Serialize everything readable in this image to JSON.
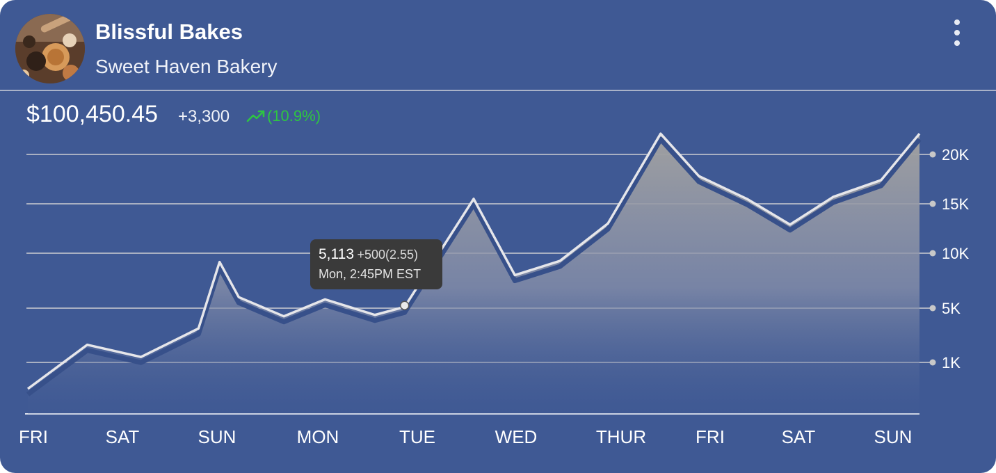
{
  "header": {
    "title": "Blissful Bakes",
    "subtitle": "Sweet Haven Bakery",
    "avatar_icon": "bakery-photo-avatar",
    "menu_icon": "more-vertical-icon"
  },
  "summary": {
    "price": "$100,450.45",
    "change": "+3,300",
    "percent": "(10.9%)",
    "trend_icon": "trending-up-icon",
    "up_color": "#2ec542"
  },
  "tooltip": {
    "value": "5,113",
    "delta": "+500(2.55)",
    "time": "Mon, 2:45PM EST"
  },
  "colors": {
    "background": "#3f5994",
    "line": "#e6e6ea",
    "grid": "#a9b0c2"
  },
  "chart_data": {
    "type": "area",
    "x_labels": [
      "FRI",
      "SAT",
      "SUN",
      "MON",
      "TUE",
      "WED",
      "THUR",
      "FRI",
      "SAT",
      "SUN"
    ],
    "y_ticks": [
      {
        "label": "1K",
        "value": 1000
      },
      {
        "label": "5K",
        "value": 5000
      },
      {
        "label": "10K",
        "value": 10000
      },
      {
        "label": "15K",
        "value": 15000
      },
      {
        "label": "20K",
        "value": 20000
      }
    ],
    "series": [
      {
        "x": [
          0.0,
          0.62,
          1.18,
          1.78,
          2.0,
          2.2,
          2.67,
          3.1,
          3.62,
          3.93,
          4.65,
          5.08,
          5.55,
          6.05,
          6.6,
          7.0,
          7.5,
          7.95,
          8.4,
          8.9,
          9.3
        ],
        "values": [
          -1500,
          2300,
          1400,
          3500,
          9200,
          6000,
          4400,
          5800,
          4500,
          5113,
          15500,
          8000,
          9300,
          13000,
          22100,
          17800,
          15500,
          12900,
          15700,
          17400,
          22100
        ]
      }
    ],
    "highlight": {
      "x": 3.93,
      "value": 5113
    },
    "grid": true,
    "legend": "none"
  }
}
